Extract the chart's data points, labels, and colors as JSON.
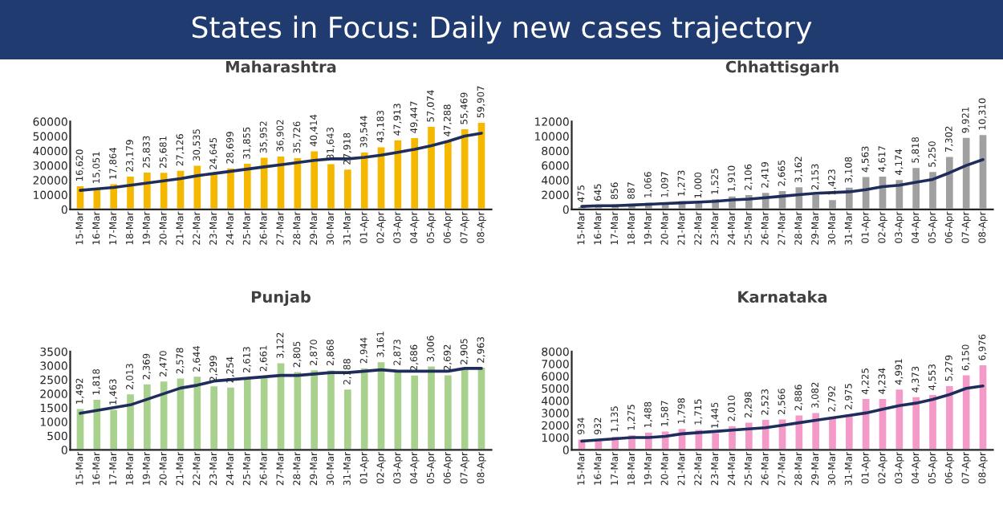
{
  "chart_data": [
    {
      "type": "bar",
      "title": "Maharashtra",
      "annotations": [
        "States in Focus: Daily new cases trajectory"
      ],
      "categories": [
        "15-Mar",
        "16-Mar",
        "17-Mar",
        "18-Mar",
        "19-Mar",
        "20-Mar",
        "21-Mar",
        "22-Mar",
        "23-Mar",
        "24-Mar",
        "25-Mar",
        "26-Mar",
        "27-Mar",
        "28-Mar",
        "29-Mar",
        "30-Mar",
        "31-Mar",
        "01-Apr",
        "02-Apr",
        "03-Apr",
        "04-Apr",
        "05-Apr",
        "06-Apr",
        "07-Apr",
        "08-Apr"
      ],
      "series": [
        {
          "color": "#f5b800",
          "values": [
            16620,
            15051,
            17864,
            23179,
            25833,
            25681,
            27126,
            30535,
            24645,
            28699,
            31855,
            35952,
            36902,
            35726,
            40414,
            31643,
            27918,
            39544,
            43183,
            47913,
            49447,
            57074,
            47288,
            55469,
            59907
          ],
          "value_labels": [
            "16,620",
            "15,051",
            "17,864",
            "23,179",
            "25,833",
            "25,681",
            "27,126",
            "30,535",
            "24,645",
            "28,699",
            "31,855",
            "35,952",
            "36,902",
            "35,726",
            "40,414",
            "31,643",
            "27,918",
            "39,544",
            "43,183",
            "47,913",
            "49,447",
            "57,074",
            "47,288",
            "55,469",
            "59,907"
          ]
        },
        {
          "type": "line",
          "color": "#1f2d5c",
          "values": [
            13000,
            14000,
            15000,
            16500,
            18000,
            19500,
            21000,
            23000,
            24500,
            26000,
            27500,
            29000,
            30500,
            32000,
            33500,
            34500,
            34500,
            35500,
            37000,
            39000,
            41000,
            43500,
            46500,
            50000,
            52000
          ]
        }
      ],
      "ylim": [
        0,
        60000
      ],
      "yticks": [
        0,
        10000,
        20000,
        30000,
        40000,
        50000,
        60000
      ]
    },
    {
      "type": "bar",
      "title": "Chhattisgarh",
      "categories": [
        "15-Mar",
        "16-Mar",
        "17-Mar",
        "18-Mar",
        "19-Mar",
        "20-Mar",
        "21-Mar",
        "22-Mar",
        "23-Mar",
        "24-Mar",
        "25-Mar",
        "26-Mar",
        "27-Mar",
        "28-Mar",
        "29-Mar",
        "30-Mar",
        "31-Mar",
        "01-Apr",
        "02-Apr",
        "03-Apr",
        "04-Apr",
        "05-Apr",
        "06-Apr",
        "07-Apr",
        "08-Apr"
      ],
      "series": [
        {
          "color": "#a0a0a0",
          "values": [
            475,
            645,
            856,
            887,
            1066,
            1097,
            1273,
            1000,
            1525,
            1910,
            2106,
            2419,
            2665,
            3162,
            2153,
            1423,
            3108,
            4563,
            4617,
            4174,
            5818,
            5250,
            7302,
            9921,
            10310
          ],
          "value_labels": [
            "475",
            "645",
            "856",
            "887",
            "1,066",
            "1,097",
            "1,273",
            "1,000",
            "1,525",
            "1,910",
            "2,106",
            "2,419",
            "2,665",
            "3,162",
            "2,153",
            "1,423",
            "3,108",
            "4,563",
            "4,617",
            "4,174",
            "5,818",
            "5,250",
            "7,302",
            "9,921",
            "10,310"
          ]
        },
        {
          "type": "line",
          "color": "#1f2d5c",
          "values": [
            400,
            500,
            500,
            600,
            700,
            800,
            900,
            1000,
            1100,
            1300,
            1400,
            1600,
            1800,
            2000,
            2200,
            2300,
            2400,
            2700,
            3100,
            3300,
            3700,
            4100,
            5000,
            6000,
            6800
          ]
        }
      ],
      "ylim": [
        0,
        12000
      ],
      "yticks": [
        0,
        2000,
        4000,
        6000,
        8000,
        10000,
        12000
      ]
    },
    {
      "type": "bar",
      "title": "Punjab",
      "categories": [
        "15-Mar",
        "16-Mar",
        "17-Mar",
        "18-Mar",
        "19-Mar",
        "20-Mar",
        "21-Mar",
        "22-Mar",
        "23-Mar",
        "24-Mar",
        "25-Mar",
        "26-Mar",
        "27-Mar",
        "28-Mar",
        "29-Mar",
        "30-Mar",
        "31-Mar",
        "01-Apr",
        "02-Apr",
        "03-Apr",
        "04-Apr",
        "05-Apr",
        "06-Apr",
        "07-Apr",
        "08-Apr"
      ],
      "series": [
        {
          "color": "#a9d18e",
          "values": [
            1492,
            1818,
            1463,
            2013,
            2369,
            2470,
            2578,
            2644,
            2299,
            2254,
            2613,
            2661,
            3122,
            2805,
            2870,
            2868,
            2188,
            2944,
            3161,
            2873,
            2686,
            3006,
            2692,
            2905,
            2963
          ],
          "value_labels": [
            "1,492",
            "1,818",
            "1,463",
            "2,013",
            "2,369",
            "2,470",
            "2,578",
            "2,644",
            "2,299",
            "2,254",
            "2,613",
            "2,661",
            "3,122",
            "2,805",
            "2,870",
            "2,868",
            "2,188",
            "2,944",
            "3,161",
            "2,873",
            "2,686",
            "3,006",
            "2,692",
            "2,905",
            "2,963"
          ]
        },
        {
          "type": "line",
          "color": "#1f2d5c",
          "values": [
            1300,
            1400,
            1500,
            1600,
            1800,
            2000,
            2200,
            2300,
            2450,
            2500,
            2550,
            2600,
            2650,
            2650,
            2700,
            2750,
            2750,
            2800,
            2850,
            2800,
            2800,
            2800,
            2800,
            2900,
            2900
          ]
        }
      ],
      "ylim": [
        0,
        3500
      ],
      "yticks": [
        0,
        500,
        1000,
        1500,
        2000,
        2500,
        3000,
        3500
      ]
    },
    {
      "type": "bar",
      "title": "Karnataka",
      "categories": [
        "15-Mar",
        "16-Mar",
        "17-Mar",
        "18-Mar",
        "19-Mar",
        "20-Mar",
        "21-Mar",
        "22-Mar",
        "23-Mar",
        "24-Mar",
        "25-Mar",
        "26-Mar",
        "27-Mar",
        "28-Mar",
        "29-Mar",
        "30-Mar",
        "31-Mar",
        "01-Apr",
        "02-Apr",
        "03-Apr",
        "04-Apr",
        "05-Apr",
        "06-Apr",
        "07-Apr",
        "08-Apr"
      ],
      "series": [
        {
          "color": "#f49ac8",
          "values": [
            934,
            932,
            1135,
            1275,
            1488,
            1587,
            1798,
            1715,
            1445,
            2010,
            2298,
            2523,
            2566,
            2886,
            3082,
            2792,
            2975,
            4225,
            4234,
            4991,
            4373,
            4553,
            5279,
            6150,
            6976
          ],
          "value_labels": [
            "934",
            "932",
            "1,135",
            "1,275",
            "1,488",
            "1,587",
            "1,798",
            "1,715",
            "1,445",
            "2,010",
            "2,298",
            "2,523",
            "2,566",
            "2,886",
            "3,082",
            "2,792",
            "2,975",
            "4,225",
            "4,234",
            "4,991",
            "4,373",
            "4,553",
            "5,279",
            "6,150",
            "6,976"
          ]
        },
        {
          "type": "line",
          "color": "#1f2d5c",
          "values": [
            700,
            800,
            900,
            1000,
            1000,
            1100,
            1300,
            1400,
            1500,
            1600,
            1700,
            1800,
            2000,
            2200,
            2400,
            2600,
            2800,
            3000,
            3300,
            3600,
            3800,
            4100,
            4500,
            5000,
            5200
          ]
        }
      ],
      "ylim": [
        0,
        8000
      ],
      "yticks": [
        0,
        1000,
        2000,
        3000,
        4000,
        5000,
        6000,
        7000,
        8000
      ]
    }
  ]
}
